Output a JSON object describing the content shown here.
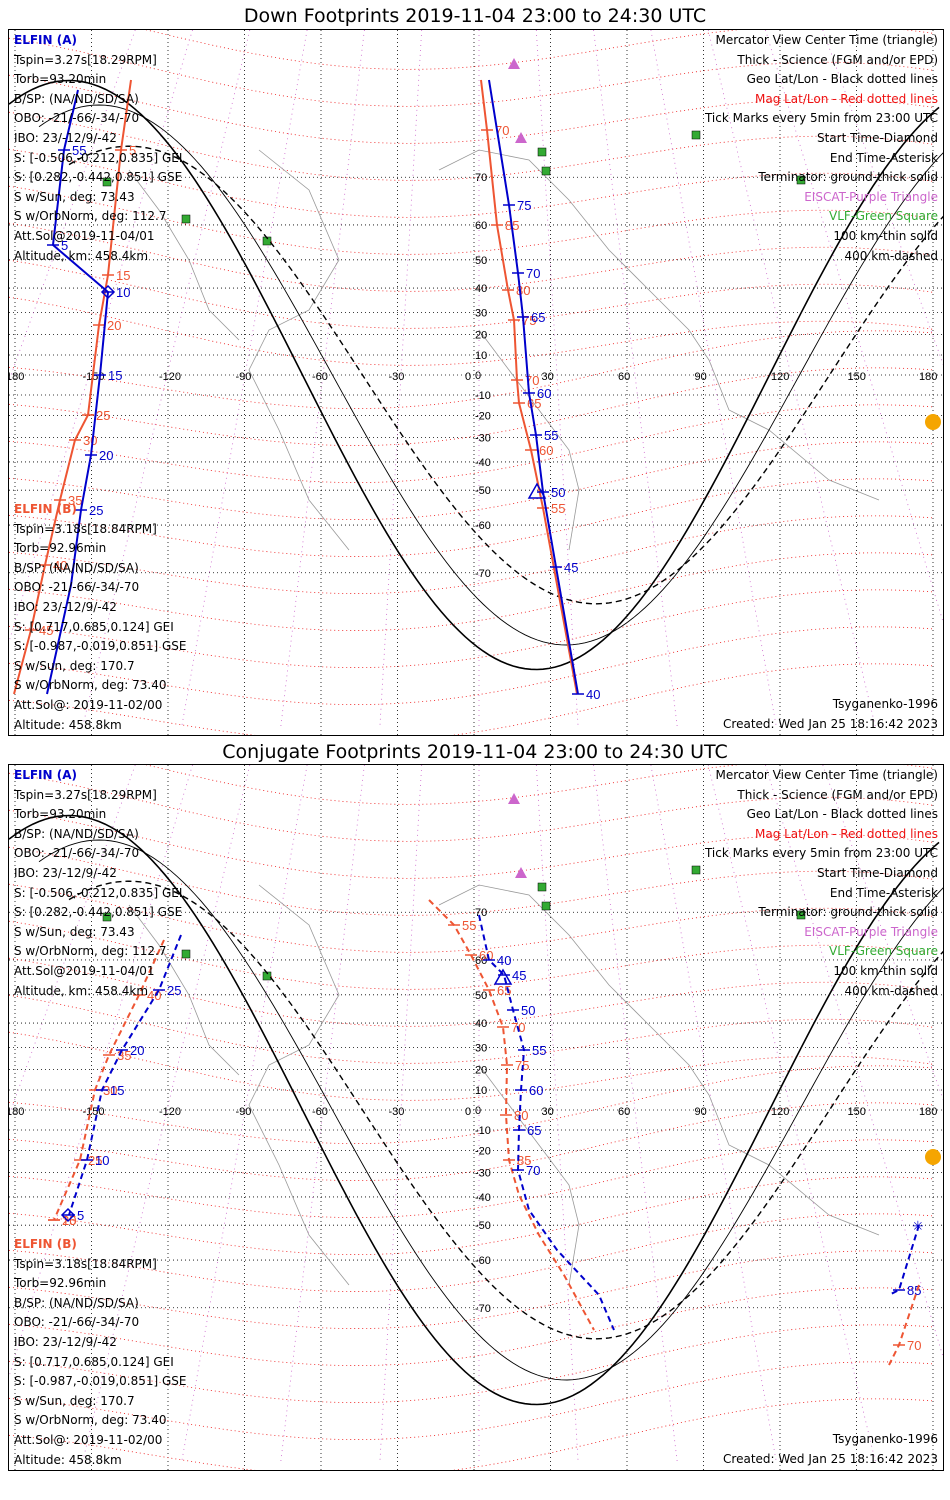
{
  "titles": {
    "down": "Down Footprints 2019-11-04 23:00 to 24:30 UTC",
    "conjugate": "Conjugate Footprints 2019-11-04 23:00 to 24:30 UTC"
  },
  "elfin_a": {
    "name": "ELFIN (A)",
    "tspin": "Tspin=3.27s[18.29RPM]",
    "torb": "Torb=93.20min",
    "bsp": "B/SP: (NA/ND/SD/SA)",
    "obo": "OBO: -21/-66/-34/-70",
    "ibo": "IBO: 23/-12/9/-42",
    "s_gei": "S: [-0.506,-0.212,0.835] GEI",
    "s_gse": "S: [0.282,-0.442,0.851] GSE",
    "s_sun": "S w/Sun, deg: 73.43",
    "s_orb": "S w/OrbNorm, deg: 112.7",
    "att": "Att.Sol@2019-11-04/01",
    "alt": "Altitude, km: 458.4km"
  },
  "elfin_b": {
    "name": "ELFIN (B)",
    "tspin": "Tspin=3.18s[18.84RPM]",
    "torb": "Torb=92.96min",
    "bsp": "B/SP: (NA/ND/SD/SA)",
    "obo": "OBO: -21/-66/-34/-70",
    "ibo": "IBO: 23/-12/9/-42",
    "s_gei": "S: [0.717,0.685,0.124] GEI",
    "s_gse": "S: [-0.987,-0.019,0.851] GSE",
    "s_sun": "S w/Sun, deg: 170.7",
    "s_orb": "S w/OrbNorm, deg: 73.40",
    "att": "Att.Sol@: 2019-11-02/00",
    "alt": "Altitude: 458.8km"
  },
  "legend": {
    "l1": "Mercator View Center Time (triangle)",
    "l2": "Thick - Science (FGM and/or EPD)",
    "l3": "Geo Lat/Lon - Black dotted lines",
    "l4": "Mag Lat/Lon - Red dotted lines",
    "l5": "Tick Marks every 5min from 23:00 UTC",
    "l6": "Start Time-Diamond",
    "l7": "End Time-Asterisk",
    "l8": "Terminator: ground-thick solid",
    "l9": "EISCAT-Purple Triangle",
    "l10": "VLF-Green Square",
    "l11": "100 km-thin solid",
    "l12": "400 km-dashed"
  },
  "footer": {
    "model": "Tsyganenko-1996",
    "created": "Created: Wed Jan 25 18:16:42 2023"
  },
  "map": {
    "lon_ticks": [
      "180",
      "-150",
      "-120",
      "-90",
      "-60",
      "-30",
      "0",
      "30",
      "60",
      "90",
      "120",
      "150",
      "180"
    ],
    "lon_values": [
      -180,
      -150,
      -120,
      -90,
      -60,
      -30,
      0,
      30,
      60,
      90,
      120,
      150,
      180
    ],
    "lat_values": [
      70,
      60,
      50,
      40,
      30,
      20,
      10,
      0,
      -10,
      -20,
      -30,
      -40,
      -50,
      -60,
      -70
    ],
    "lat_ticks": [
      "70",
      "60",
      "50",
      "40",
      "30",
      "20",
      "10",
      "0",
      "-10",
      "-20",
      "-30",
      "-40",
      "-50",
      "-60",
      "-70"
    ]
  },
  "colors": {
    "elfin_a": "#0000cc",
    "elfin_b": "#ee5533",
    "geo_grid": "#000000",
    "mag_grid": "#ee1111",
    "eiscat": "#cc66cc",
    "vlf": "#33aa33",
    "sun": "#f5a500"
  },
  "down_tracks": {
    "a_upper_labels": [
      "75",
      "70",
      "65",
      "60",
      "55",
      "50",
      "45",
      "40"
    ],
    "a_upper_points": [
      [
        480,
        50
      ],
      [
        500,
        175
      ],
      [
        509,
        243
      ],
      [
        514,
        287
      ],
      [
        520,
        363
      ],
      [
        527,
        405
      ],
      [
        534,
        462
      ],
      [
        547,
        537
      ],
      [
        569,
        664
      ]
    ],
    "b_upper_labels": [
      "70",
      "85",
      "80",
      "75",
      "70",
      "65",
      "60",
      "55"
    ],
    "b_upper_points": [
      [
        472,
        50
      ],
      [
        478,
        100
      ],
      [
        488,
        195
      ],
      [
        499,
        260
      ],
      [
        505,
        290
      ],
      [
        508,
        350
      ],
      [
        510,
        373
      ],
      [
        522,
        420
      ],
      [
        534,
        478
      ],
      [
        549,
        560
      ],
      [
        568,
        664
      ]
    ],
    "a_left_labels": [
      "55",
      "5",
      "10",
      "15",
      "20",
      "25"
    ],
    "a_left_points": [
      [
        69,
        60
      ],
      [
        55,
        120
      ],
      [
        44,
        215
      ],
      [
        99,
        262
      ],
      [
        91,
        345
      ],
      [
        82,
        425
      ],
      [
        72,
        480
      ],
      [
        62,
        555
      ],
      [
        38,
        664
      ]
    ],
    "b_left_labels": [
      "5",
      "15",
      "20",
      "25",
      "30",
      "35",
      "40",
      "45"
    ],
    "b_left_points": [
      [
        122,
        50
      ],
      [
        112,
        120
      ],
      [
        99,
        245
      ],
      [
        90,
        295
      ],
      [
        79,
        385
      ],
      [
        66,
        410
      ],
      [
        51,
        470
      ],
      [
        36,
        535
      ],
      [
        22,
        600
      ],
      [
        5,
        664
      ]
    ]
  },
  "conj_tracks": {
    "a_main_labels": [
      "40",
      "45",
      "50",
      "55",
      "60",
      "65",
      "70"
    ],
    "a_main_points": [
      [
        470,
        150
      ],
      [
        480,
        195
      ],
      [
        495,
        210
      ],
      [
        504,
        245
      ],
      [
        515,
        285
      ],
      [
        512,
        325
      ],
      [
        510,
        365
      ],
      [
        509,
        405
      ],
      [
        520,
        445
      ],
      [
        548,
        485
      ],
      [
        590,
        530
      ],
      [
        605,
        565
      ]
    ],
    "b_main_labels": [
      "55",
      "60",
      "65",
      "70",
      "75",
      "80",
      "85"
    ],
    "b_main_points": [
      [
        420,
        135
      ],
      [
        445,
        160
      ],
      [
        462,
        190
      ],
      [
        480,
        225
      ],
      [
        494,
        262
      ],
      [
        498,
        300
      ],
      [
        497,
        350
      ],
      [
        500,
        395
      ],
      [
        510,
        430
      ],
      [
        530,
        470
      ],
      [
        555,
        510
      ],
      [
        585,
        565
      ]
    ],
    "a_left_labels": [
      "25",
      "20",
      "15",
      "10",
      "5"
    ],
    "a_left_points": [
      [
        172,
        170
      ],
      [
        150,
        225
      ],
      [
        113,
        285
      ],
      [
        93,
        325
      ],
      [
        78,
        395
      ],
      [
        60,
        450
      ]
    ],
    "b_left_labels": [
      "40",
      "35",
      "30",
      "25",
      "20",
      "15"
    ],
    "b_left_points": [
      [
        155,
        175
      ],
      [
        130,
        230
      ],
      [
        100,
        290
      ],
      [
        86,
        325
      ],
      [
        71,
        395
      ],
      [
        45,
        455
      ]
    ],
    "a_right_labels": [
      "85"
    ],
    "a_right_points": [
      [
        910,
        460
      ],
      [
        890,
        525
      ],
      [
        880,
        530
      ]
    ],
    "b_right_labels": [
      "70"
    ],
    "b_right_points": [
      [
        910,
        520
      ],
      [
        890,
        580
      ],
      [
        880,
        600
      ]
    ]
  }
}
